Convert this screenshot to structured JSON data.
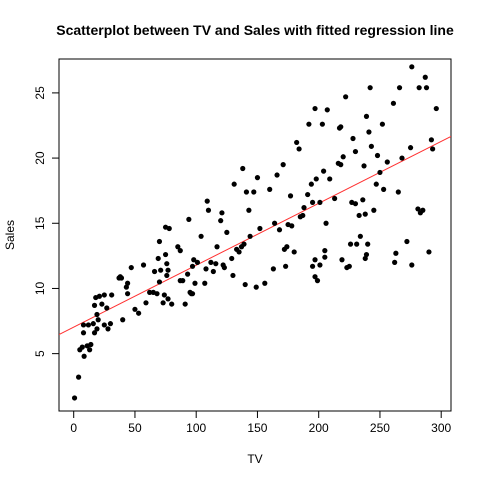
{
  "chart_data": {
    "type": "scatter",
    "title": "Scatterplot between TV and Sales with fitted regression line",
    "xlabel": "TV",
    "ylabel": "Sales",
    "xlim": [
      -12,
      308
    ],
    "ylim": [
      0.6,
      27.6
    ],
    "xticks": [
      0,
      50,
      100,
      150,
      200,
      250,
      300
    ],
    "yticks": [
      5,
      10,
      15,
      20,
      25
    ],
    "point_color": "#000000",
    "regression_line": {
      "intercept": 7.03,
      "slope": 0.0475,
      "color": "#ff3030"
    },
    "points": [
      [
        0.7,
        1.6
      ],
      [
        4,
        3.2
      ],
      [
        5,
        5.3
      ],
      [
        7,
        5.5
      ],
      [
        8,
        6.6
      ],
      [
        8,
        7.2
      ],
      [
        8.5,
        4.8
      ],
      [
        11,
        5.6
      ],
      [
        12,
        7.2
      ],
      [
        13,
        5.3
      ],
      [
        14,
        5.7
      ],
      [
        16,
        7.3
      ],
      [
        17,
        8.7
      ],
      [
        17,
        6.6
      ],
      [
        18,
        9.3
      ],
      [
        19,
        8.0
      ],
      [
        19,
        6.9
      ],
      [
        20,
        7.6
      ],
      [
        21,
        9.4
      ],
      [
        23,
        8.8
      ],
      [
        25,
        7.2
      ],
      [
        25,
        9.5
      ],
      [
        27,
        8.5
      ],
      [
        28,
        6.9
      ],
      [
        30,
        7.3
      ],
      [
        31,
        9.5
      ],
      [
        37,
        10.8
      ],
      [
        38,
        10.9
      ],
      [
        39,
        10.8
      ],
      [
        40,
        7.6
      ],
      [
        43,
        10.1
      ],
      [
        44,
        9.6
      ],
      [
        44,
        10.4
      ],
      [
        47,
        11.6
      ],
      [
        50,
        8.4
      ],
      [
        53,
        8.1
      ],
      [
        57,
        11.8
      ],
      [
        59,
        8.9
      ],
      [
        62,
        9.7
      ],
      [
        65,
        9.7
      ],
      [
        66,
        11.3
      ],
      [
        68,
        9.6
      ],
      [
        69,
        12.3
      ],
      [
        70,
        13.6
      ],
      [
        70,
        10.5
      ],
      [
        71,
        11.4
      ],
      [
        73,
        8.9
      ],
      [
        74,
        9.5
      ],
      [
        75,
        12.6
      ],
      [
        75,
        14.7
      ],
      [
        76,
        11.0
      ],
      [
        76,
        11.9
      ],
      [
        77,
        11.4
      ],
      [
        77,
        9.2
      ],
      [
        78,
        14.6
      ],
      [
        80,
        8.8
      ],
      [
        85,
        13.2
      ],
      [
        87,
        12.9
      ],
      [
        87,
        10.6
      ],
      [
        89,
        10.6
      ],
      [
        91,
        8.8
      ],
      [
        93,
        11.1
      ],
      [
        94,
        15.3
      ],
      [
        95,
        9.7
      ],
      [
        96,
        9.6
      ],
      [
        97,
        11.7
      ],
      [
        97,
        9.6
      ],
      [
        98,
        12.2
      ],
      [
        99,
        10.4
      ],
      [
        101,
        12.0
      ],
      [
        104,
        14.0
      ],
      [
        107,
        10.4
      ],
      [
        108,
        11.5
      ],
      [
        109,
        16.7
      ],
      [
        110,
        16.0
      ],
      [
        112,
        12.0
      ],
      [
        114,
        11.3
      ],
      [
        116,
        11.9
      ],
      [
        117,
        13.2
      ],
      [
        120,
        15.2
      ],
      [
        121,
        15.8
      ],
      [
        122,
        11.8
      ],
      [
        123,
        11.6
      ],
      [
        125,
        14.3
      ],
      [
        129,
        12.3
      ],
      [
        130,
        11.0
      ],
      [
        131,
        18.0
      ],
      [
        133,
        13.0
      ],
      [
        135,
        12.8
      ],
      [
        137,
        13.2
      ],
      [
        138,
        19.2
      ],
      [
        139,
        13.4
      ],
      [
        140,
        10.3
      ],
      [
        141,
        17.4
      ],
      [
        143,
        16.0
      ],
      [
        144,
        14.0
      ],
      [
        147,
        17.4
      ],
      [
        149,
        10.1
      ],
      [
        150,
        18.5
      ],
      [
        152,
        14.6
      ],
      [
        156,
        10.4
      ],
      [
        160,
        17.6
      ],
      [
        163,
        11.5
      ],
      [
        164,
        15.0
      ],
      [
        166,
        18.7
      ],
      [
        168,
        14.5
      ],
      [
        171,
        19.5
      ],
      [
        172,
        13.0
      ],
      [
        173,
        11.7
      ],
      [
        174,
        13.2
      ],
      [
        175,
        14.9
      ],
      [
        177,
        17.1
      ],
      [
        178,
        14.8
      ],
      [
        180,
        12.8
      ],
      [
        182,
        21.2
      ],
      [
        184,
        20.7
      ],
      [
        185,
        15.5
      ],
      [
        187,
        15.6
      ],
      [
        188,
        16.2
      ],
      [
        191,
        17.2
      ],
      [
        192,
        22.6
      ],
      [
        194,
        18.0
      ],
      [
        195,
        11.7
      ],
      [
        195,
        16.6
      ],
      [
        197,
        10.9
      ],
      [
        197,
        12.2
      ],
      [
        197,
        23.8
      ],
      [
        198,
        18.4
      ],
      [
        199,
        10.6
      ],
      [
        201,
        16.6
      ],
      [
        201,
        11.8
      ],
      [
        203,
        22.6
      ],
      [
        204,
        19.0
      ],
      [
        205,
        12.4
      ],
      [
        205,
        12.9
      ],
      [
        206,
        15.0
      ],
      [
        207,
        23.7
      ],
      [
        209,
        18.4
      ],
      [
        213,
        16.9
      ],
      [
        216,
        19.6
      ],
      [
        217,
        22.3
      ],
      [
        218,
        19.5
      ],
      [
        218,
        22.4
      ],
      [
        219,
        12.2
      ],
      [
        220,
        20.1
      ],
      [
        222,
        24.7
      ],
      [
        223,
        11.6
      ],
      [
        225,
        11.7
      ],
      [
        226,
        13.4
      ],
      [
        227,
        16.6
      ],
      [
        228,
        21.5
      ],
      [
        230,
        16.5
      ],
      [
        230,
        20.5
      ],
      [
        231,
        13.4
      ],
      [
        233,
        15.6
      ],
      [
        234,
        14.0
      ],
      [
        236,
        16.8
      ],
      [
        237,
        19.4
      ],
      [
        238,
        12.3
      ],
      [
        238,
        15.7
      ],
      [
        239,
        12.6
      ],
      [
        239,
        23.2
      ],
      [
        240,
        13.4
      ],
      [
        241,
        22.0
      ],
      [
        242,
        25.4
      ],
      [
        243,
        20.9
      ],
      [
        245,
        16.0
      ],
      [
        247,
        18.0
      ],
      [
        248,
        20.2
      ],
      [
        250,
        18.9
      ],
      [
        252,
        22.6
      ],
      [
        253,
        17.6
      ],
      [
        256,
        19.7
      ],
      [
        261,
        24.2
      ],
      [
        262,
        12.0
      ],
      [
        263,
        12.7
      ],
      [
        265,
        17.4
      ],
      [
        266,
        25.4
      ],
      [
        268,
        20.0
      ],
      [
        272,
        13.6
      ],
      [
        275,
        20.8
      ],
      [
        276,
        11.8
      ],
      [
        276,
        27.0
      ],
      [
        281,
        16.1
      ],
      [
        282,
        25.4
      ],
      [
        283,
        15.8
      ],
      [
        285,
        16.0
      ],
      [
        287,
        26.2
      ],
      [
        288,
        25.4
      ],
      [
        290,
        12.8
      ],
      [
        292,
        21.4
      ],
      [
        293,
        20.7
      ],
      [
        296,
        23.8
      ]
    ]
  }
}
